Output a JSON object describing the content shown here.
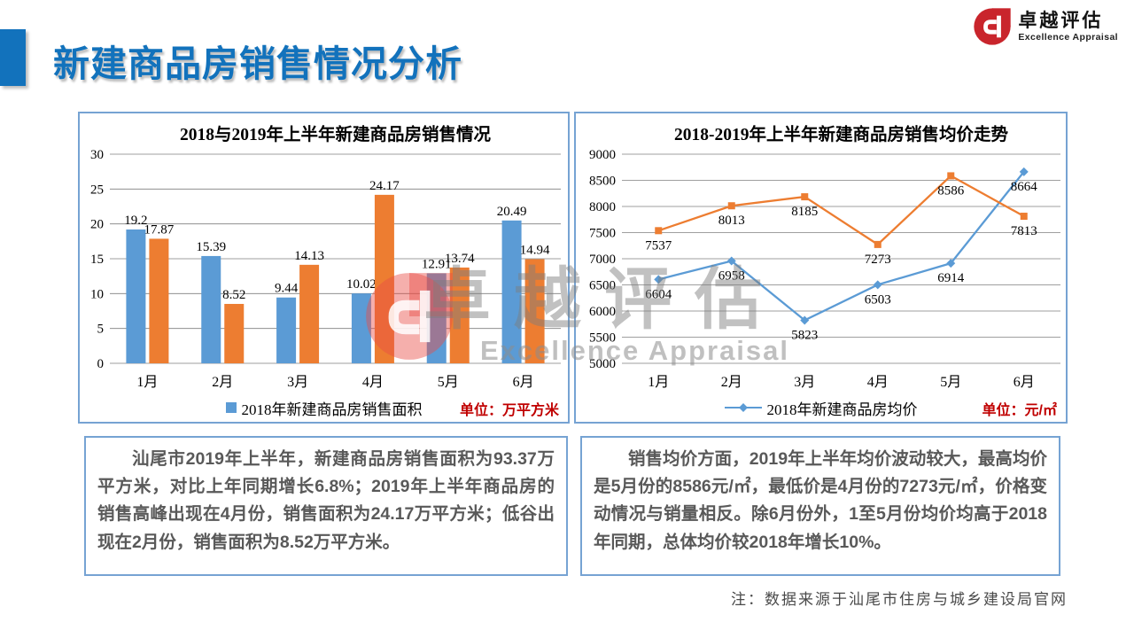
{
  "header": {
    "title": "新建商品房销售情况分析",
    "brand": {
      "name": "卓越评估",
      "subtitle": "Excellence Appraisal"
    }
  },
  "watermark": {
    "text": "卓越评估",
    "subtext": "Excellence Appraisal"
  },
  "chart_data": [
    {
      "type": "bar",
      "title": "2018与2019年上半年新建商品房销售情况",
      "categories": [
        "1月",
        "2月",
        "3月",
        "4月",
        "5月",
        "6月"
      ],
      "series": [
        {
          "name": "2018",
          "legend_label": "2018年新建商品房销售面积",
          "color": "#5B9BD5",
          "values": [
            19.2,
            15.39,
            9.44,
            10.02,
            12.91,
            20.49
          ]
        },
        {
          "name": "2019",
          "legend_label": "",
          "color": "#ED7D31",
          "values": [
            17.87,
            8.52,
            14.13,
            24.17,
            13.74,
            14.94
          ]
        }
      ],
      "ylim": [
        0,
        30
      ],
      "ytick_step": 5,
      "grid": true,
      "legend_position": "bottom",
      "unit_label": "单位：万平方米"
    },
    {
      "type": "line",
      "title": "2018-2019年上半年新建商品房销售均价走势",
      "categories": [
        "1月",
        "2月",
        "3月",
        "4月",
        "5月",
        "6月"
      ],
      "series": [
        {
          "name": "2018",
          "legend_label": "2018年新建商品房均价",
          "color": "#5B9BD5",
          "marker": "diamond",
          "values": [
            6604,
            6958,
            5823,
            6503,
            6914,
            8664
          ]
        },
        {
          "name": "2019",
          "legend_label": "",
          "color": "#ED7D31",
          "marker": "square",
          "values": [
            7537,
            8013,
            8185,
            7273,
            8586,
            7813
          ]
        }
      ],
      "ylim": [
        5000,
        9000
      ],
      "ytick_step": 500,
      "grid": true,
      "legend_position": "bottom",
      "unit_label": "单位：元/㎡"
    }
  ],
  "analysis": {
    "left": "汕尾市2019年上半年，新建商品房销售面积为93.37万平方米，对比上年同期增长6.8%；2019年上半年商品房的销售高峰出现在4月份，销售面积为24.17万平方米；低谷出现在2月份，销售面积为8.52万平方米。",
    "right": "销售均价方面，2019年上半年均价波动较大，最高均价是5月份的8586元/㎡，最低价是4月份的7273元/㎡，价格变动情况与销量相反。除6月份外，1至5月份均价均高于2018年同期，总体均价较2018年增长10%。"
  },
  "footnote": "注：数据来源于汕尾市住房与城乡建设局官网",
  "colors": {
    "accent_blue": "#1272BC",
    "panel_border": "#76A3D3",
    "series_2018": "#5B9BD5",
    "series_2019": "#ED7D31",
    "unit_red": "#C00000",
    "brand_red": "#C9252C",
    "body_gray": "#595959",
    "gridline_gray": "#7F7F7F"
  }
}
